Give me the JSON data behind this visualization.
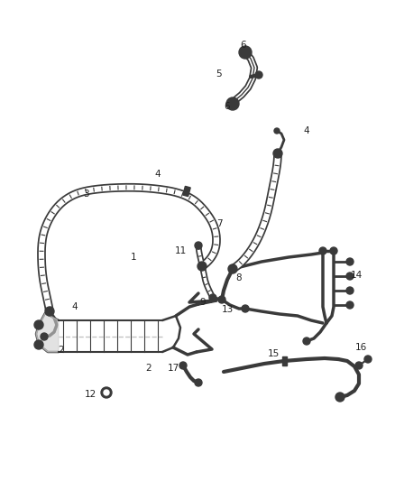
{
  "background_color": "#ffffff",
  "line_color": "#3a3a3a",
  "label_color": "#222222",
  "label_fontsize": 7.5,
  "fig_width": 4.38,
  "fig_height": 5.33,
  "dpi": 100
}
